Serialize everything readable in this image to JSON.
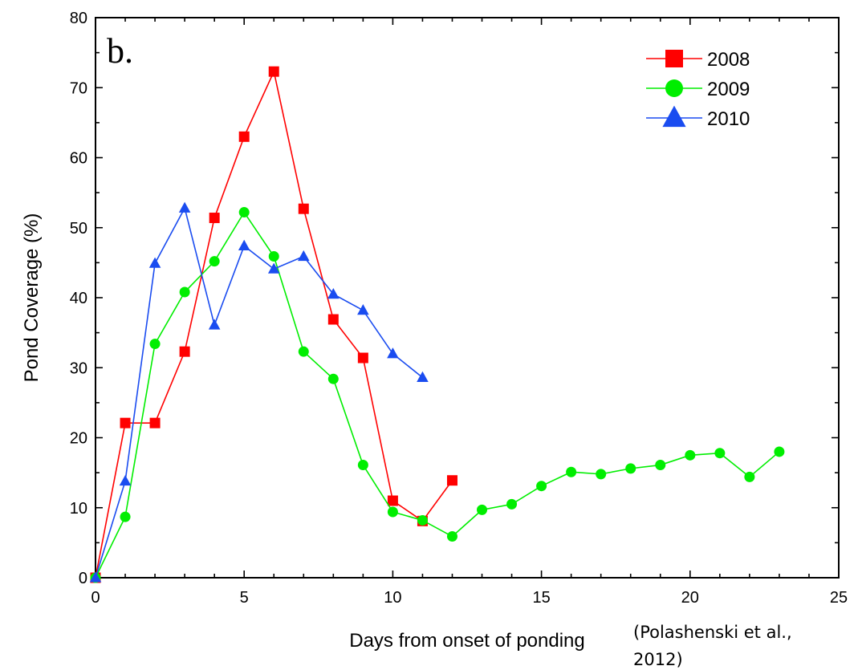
{
  "chart_data": {
    "type": "line",
    "panel_label": "b.",
    "title": "",
    "xlabel": "Days from onset of ponding",
    "ylabel": "Pond Coverage (%)",
    "xlim": [
      0,
      25
    ],
    "ylim": [
      0,
      80
    ],
    "xticks": [
      0,
      5,
      10,
      15,
      20,
      25
    ],
    "yticks": [
      0,
      10,
      20,
      30,
      40,
      50,
      60,
      70,
      80
    ],
    "grid": false,
    "legend_position": "top-right",
    "citation_lines": [
      "(Polashenski et al.,",
      "2012)"
    ],
    "series": [
      {
        "name": "2008",
        "color": "#ff0000",
        "marker": "square",
        "points": [
          [
            0,
            0
          ],
          [
            1,
            22.1
          ],
          [
            2,
            22.1
          ],
          [
            3,
            32.3
          ],
          [
            4,
            51.4
          ],
          [
            5,
            63.0
          ],
          [
            6,
            72.3
          ],
          [
            7,
            52.7
          ],
          [
            8,
            36.9
          ],
          [
            9,
            31.4
          ],
          [
            10,
            11.0
          ],
          [
            11,
            8.1
          ],
          [
            12,
            13.9
          ]
        ]
      },
      {
        "name": "2009",
        "color": "#00ee00",
        "marker": "circle",
        "points": [
          [
            0,
            0
          ],
          [
            1,
            8.7
          ],
          [
            2,
            33.4
          ],
          [
            3,
            40.8
          ],
          [
            4,
            45.2
          ],
          [
            5,
            52.2
          ],
          [
            6,
            45.9
          ],
          [
            7,
            32.3
          ],
          [
            8,
            28.4
          ],
          [
            9,
            16.1
          ],
          [
            10,
            9.4
          ],
          [
            11,
            8.2
          ],
          [
            12,
            5.9
          ],
          [
            13,
            9.7
          ],
          [
            14,
            10.5
          ],
          [
            15,
            13.1
          ],
          [
            16,
            15.1
          ],
          [
            17,
            14.8
          ],
          [
            18,
            15.6
          ],
          [
            19,
            16.1
          ],
          [
            20,
            17.5
          ],
          [
            21,
            17.8
          ],
          [
            22,
            14.4
          ],
          [
            23,
            18.0
          ]
        ]
      },
      {
        "name": "2010",
        "color": "#1a4cf0",
        "marker": "triangle",
        "points": [
          [
            0,
            0
          ],
          [
            1,
            13.8
          ],
          [
            2,
            44.9
          ],
          [
            3,
            52.8
          ],
          [
            4,
            36.1
          ],
          [
            5,
            47.4
          ],
          [
            6,
            44.1
          ],
          [
            7,
            45.9
          ],
          [
            8,
            40.5
          ],
          [
            9,
            38.2
          ],
          [
            10,
            32.0
          ],
          [
            11,
            28.6
          ]
        ]
      }
    ]
  }
}
